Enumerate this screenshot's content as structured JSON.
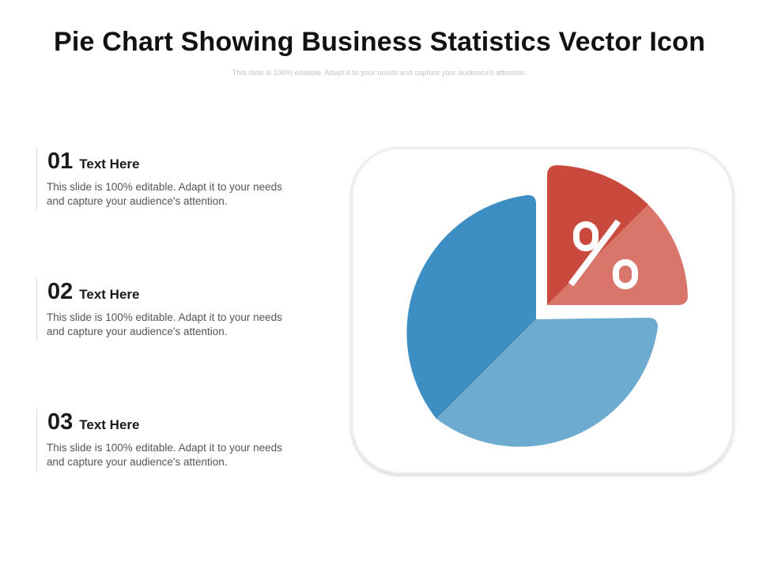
{
  "title": "Pie Chart Showing Business Statistics Vector Icon",
  "subtitle": "This slide is 100% editable. Adapt it to your needs and capture your audience's attention.",
  "items": [
    {
      "number": "01",
      "title": "Text Here",
      "description": "This slide is 100% editable. Adapt it to your needs and capture your audience's attention."
    },
    {
      "number": "02",
      "title": "Text Here",
      "description": "This slide is 100% editable. Adapt it to your needs and capture your audience's attention."
    },
    {
      "number": "03",
      "title": "Text Here",
      "description": "This slide is 100% editable. Adapt it to your needs and capture your audience's attention."
    }
  ],
  "icon": {
    "name": "pie-chart-percent-icon",
    "symbol": "%",
    "colors": {
      "dark_blue": "#3d8ec2",
      "light_blue": "#6eabd1",
      "dark_red": "#c94a3c",
      "light_red": "#d9756a",
      "white": "#ffffff"
    }
  }
}
